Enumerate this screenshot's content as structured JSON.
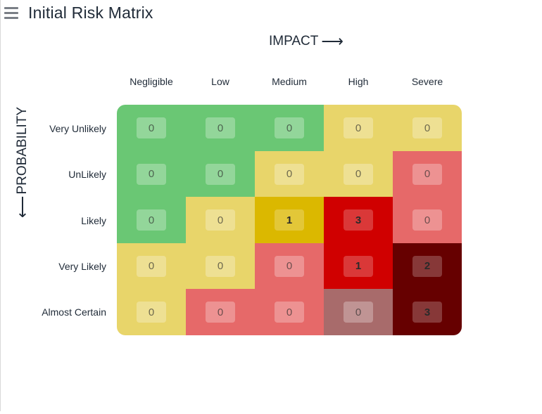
{
  "header": {
    "title": "Initial Risk Matrix",
    "menu_icon": "hamburger-menu-icon"
  },
  "impact_axis": {
    "label": "IMPACT",
    "arrow": "⟶",
    "levels": [
      "Negligible",
      "Low",
      "Medium",
      "High",
      "Severe"
    ]
  },
  "probability_axis": {
    "label": "PROBABILITY",
    "arrow": "⟵",
    "levels": [
      "Very Unlikely",
      "UnLikely",
      "Likely",
      "Very Likely",
      "Almost Certain"
    ]
  },
  "colors": {
    "green": "#6ac774",
    "yellow": "#e8d56a",
    "salmon": "#e66969",
    "mauve": "#a86b6b",
    "gold": "#dbb800",
    "red": "#d00000",
    "maroon": "#660000"
  },
  "matrix": [
    [
      {
        "count": "0",
        "color": "green"
      },
      {
        "count": "0",
        "color": "green"
      },
      {
        "count": "0",
        "color": "green"
      },
      {
        "count": "0",
        "color": "yellow"
      },
      {
        "count": "0",
        "color": "yellow"
      }
    ],
    [
      {
        "count": "0",
        "color": "green"
      },
      {
        "count": "0",
        "color": "green"
      },
      {
        "count": "0",
        "color": "yellow"
      },
      {
        "count": "0",
        "color": "yellow"
      },
      {
        "count": "0",
        "color": "salmon"
      }
    ],
    [
      {
        "count": "0",
        "color": "green"
      },
      {
        "count": "0",
        "color": "yellow"
      },
      {
        "count": "1",
        "color": "gold"
      },
      {
        "count": "3",
        "color": "red"
      },
      {
        "count": "0",
        "color": "salmon"
      }
    ],
    [
      {
        "count": "0",
        "color": "yellow"
      },
      {
        "count": "0",
        "color": "yellow"
      },
      {
        "count": "0",
        "color": "salmon"
      },
      {
        "count": "1",
        "color": "red"
      },
      {
        "count": "2",
        "color": "maroon"
      }
    ],
    [
      {
        "count": "0",
        "color": "yellow"
      },
      {
        "count": "0",
        "color": "salmon"
      },
      {
        "count": "0",
        "color": "salmon"
      },
      {
        "count": "0",
        "color": "mauve"
      },
      {
        "count": "3",
        "color": "maroon"
      }
    ]
  ]
}
